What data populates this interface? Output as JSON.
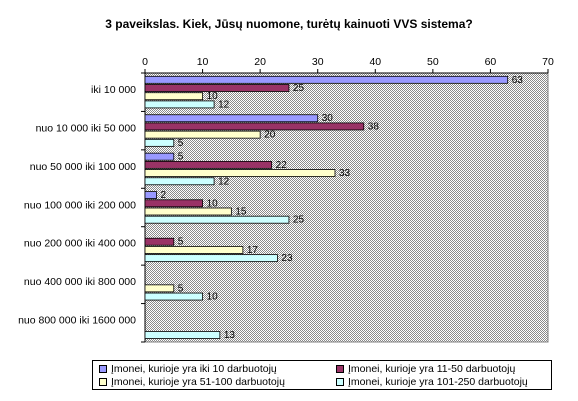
{
  "title": "3 paveikslas. Kiek, Jūsų nuomone, turėtų kainuoti VVS sistema?",
  "chart_data": {
    "type": "bar",
    "orientation": "horizontal",
    "title": "3 paveikslas. Kiek, Jūsų nuomone, turėtų kainuoti VVS sistema?",
    "categories": [
      "iki 10 000",
      "nuo 10 000 iki 50 000",
      "nuo 50 000 iki 100 000",
      "nuo 100 000 iki 200 000",
      "nuo 200 000 iki 400 000",
      "nuo 400 000 iki 800 000",
      "nuo 800 000 iki 1600 000"
    ],
    "series": [
      {
        "name": "Įmonei, kurioje yra iki 10 darbuotojų",
        "color": "#9999ff",
        "values": [
          63,
          30,
          5,
          2,
          null,
          null,
          null
        ]
      },
      {
        "name": "Įmonei, kurioje yra 11-50 darbuotojų",
        "color": "#993366",
        "values": [
          25,
          38,
          22,
          10,
          5,
          null,
          null
        ]
      },
      {
        "name": "Įmonei, kurioje yra 51-100 darbuotojų",
        "color": "#ffffcc",
        "values": [
          10,
          20,
          33,
          15,
          17,
          5,
          null
        ]
      },
      {
        "name": "Įmonei, kurioje yra 101-250 darbuotojų",
        "color": "#ccffff",
        "values": [
          12,
          5,
          12,
          25,
          23,
          10,
          13
        ]
      }
    ],
    "xlim": [
      0,
      70
    ],
    "ticks": [
      0,
      10,
      20,
      30,
      40,
      50,
      60,
      70
    ],
    "axis_position": "top",
    "legend_position": "bottom",
    "grid": false,
    "plot_background": "#c0c0c0 dotted"
  }
}
